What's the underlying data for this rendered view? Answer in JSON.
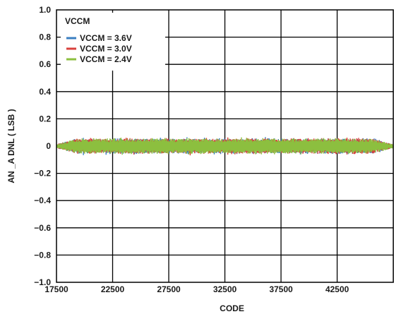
{
  "chart_data": {
    "type": "scatter",
    "title": "",
    "xlabel": "CODE",
    "ylabel": "AN _A DNL ( LSB )",
    "xlim": [
      17500,
      47500
    ],
    "ylim": [
      -1.0,
      1.0
    ],
    "x_ticks": [
      "17500",
      "22500",
      "27500",
      "32500",
      "37500",
      "42500"
    ],
    "x_tick_values": [
      17500,
      22500,
      27500,
      32500,
      37500,
      42500
    ],
    "y_ticks": [
      "1.0",
      "0.8",
      "0.6",
      "0.4",
      "0.2",
      "0",
      "−0.2",
      "−0.4",
      "−0.6",
      "−0.8",
      "−1.0"
    ],
    "y_tick_values": [
      1.0,
      0.8,
      0.6,
      0.4,
      0.2,
      0,
      -0.2,
      -0.4,
      -0.6,
      -0.8,
      -1.0
    ],
    "grid": true,
    "legend": {
      "title": "VCCM",
      "placement": "top-left",
      "entries": [
        "VCCM = 3.6V",
        "VCCM = 3.0V",
        "VCCM = 2.4V"
      ]
    },
    "series": [
      {
        "name": "VCCM = 3.6V",
        "color": "#3a7fc1",
        "dnl_envelope_lsb": 0.07,
        "x_range": [
          17500,
          47500
        ]
      },
      {
        "name": "VCCM = 3.0V",
        "color": "#d9413c",
        "dnl_envelope_lsb": 0.07,
        "x_range": [
          17500,
          47500
        ]
      },
      {
        "name": "VCCM = 2.4V",
        "color": "#8cbf3f",
        "dnl_envelope_lsb": 0.07,
        "x_range": [
          17500,
          47500
        ]
      }
    ]
  }
}
